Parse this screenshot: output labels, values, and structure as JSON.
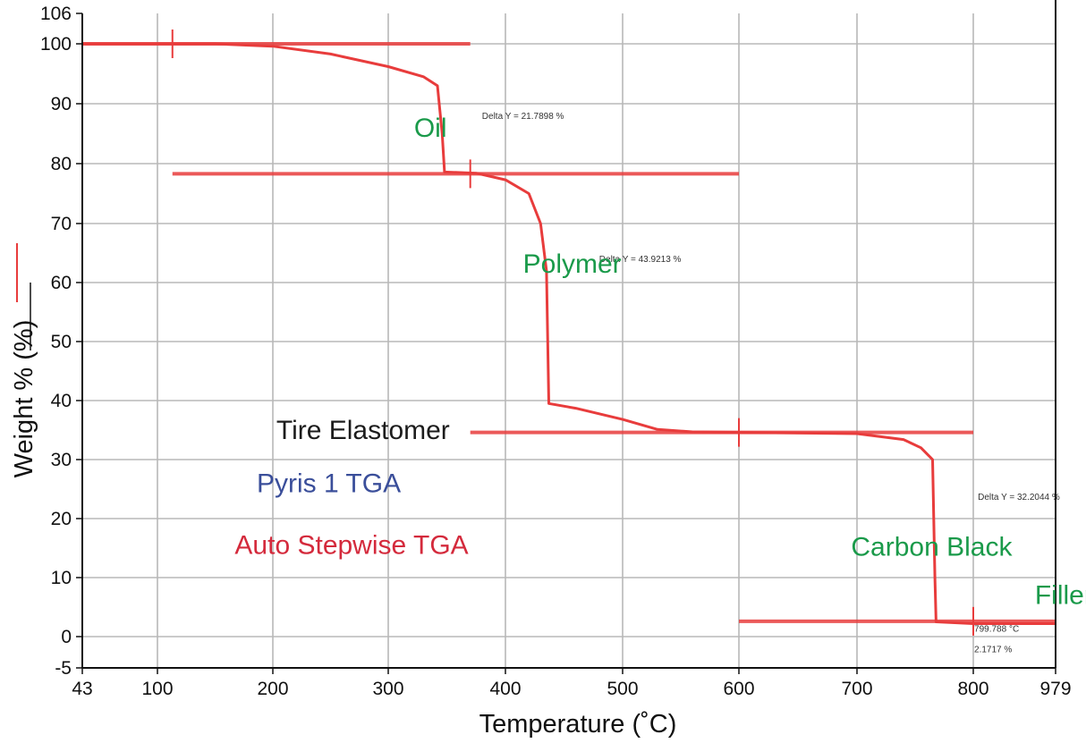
{
  "colors": {
    "curve": "#e83c3c",
    "grid": "#b8b8b8",
    "axis": "#111111",
    "region_label": "#1a9a4a",
    "title_black": "#1c1c1c",
    "title_blue": "#3a4e9a",
    "title_red": "#d42a3c"
  },
  "chart_data": {
    "type": "line",
    "xlabel": "Temperature (˚C)",
    "ylabel": "Weight % (%)",
    "xlim": [
      43,
      979
    ],
    "ylim": [
      -5,
      106
    ],
    "xticks": [
      "43",
      "100",
      "200",
      "300",
      "400",
      "500",
      "600",
      "700",
      "800",
      "979"
    ],
    "yticks": [
      "106",
      "100",
      "90",
      "80",
      "70",
      "60",
      "50",
      "40",
      "30",
      "20",
      "10",
      "0",
      "-5"
    ],
    "grid": true,
    "series": [
      {
        "points": [
          [
            43,
            100
          ],
          [
            150,
            100
          ],
          [
            200,
            99.6
          ],
          [
            250,
            98.3
          ],
          [
            300,
            96.2
          ],
          [
            330,
            94.5
          ],
          [
            342,
            93
          ],
          [
            346,
            85
          ],
          [
            348,
            78.6
          ],
          [
            375,
            78.4
          ],
          [
            400,
            77.3
          ],
          [
            420,
            75
          ],
          [
            430,
            70
          ],
          [
            435,
            62
          ],
          [
            437,
            39.5
          ],
          [
            460,
            38.7
          ],
          [
            500,
            36.8
          ],
          [
            530,
            35.1
          ],
          [
            560,
            34.7
          ],
          [
            700,
            34.4
          ],
          [
            740,
            33.4
          ],
          [
            755,
            32
          ],
          [
            765,
            30
          ],
          [
            766,
            20
          ],
          [
            767,
            10
          ],
          [
            768,
            2.5
          ],
          [
            800,
            2.2
          ],
          [
            979,
            2.2
          ]
        ]
      }
    ],
    "reference_lines": [
      {
        "y": 100,
        "x": [
          43,
          370
        ]
      },
      {
        "y": 78.3,
        "x": [
          113,
          600
        ]
      },
      {
        "y": 34.6,
        "x": [
          370,
          800
        ]
      },
      {
        "y": 2.6,
        "x": [
          600,
          979
        ]
      }
    ],
    "step_markers": [
      {
        "x": 113,
        "y": 100
      },
      {
        "x": 370,
        "y": 78.3
      },
      {
        "x": 600,
        "y": 34.6
      },
      {
        "x": 800,
        "y": 2.6
      }
    ],
    "annotations": [
      {
        "text": "Delta Y = 21.7898 %",
        "x": 380,
        "y": 87.5
      },
      {
        "text": "Delta Y = 43.9213 %",
        "x": 480,
        "y": 63.5
      },
      {
        "text": "Delta Y = 32.2044 %",
        "x": 810,
        "y": 23.2
      },
      {
        "text": "799.788 °C",
        "x": 802,
        "y": 0.8
      },
      {
        "text": "2.1717 %",
        "x": 802,
        "y": -2.5
      }
    ],
    "region_labels": [
      {
        "text": "Oil",
        "x": 322,
        "y": 84.5
      },
      {
        "text": "Polymer",
        "x": 415,
        "y": 61.7
      },
      {
        "text": "Carbon Black",
        "x": 695,
        "y": 13.7
      },
      {
        "text": "Filler",
        "x": 934,
        "y": 5.5
      }
    ],
    "info_labels": [
      {
        "text": "Tire Elastomer",
        "color_key": "title_black",
        "x": 203,
        "y": 33.5
      },
      {
        "text": "Pyris 1 TGA",
        "color_key": "title_blue",
        "x": 186,
        "y": 24.5
      },
      {
        "text": "Auto Stepwise TGA",
        "color_key": "title_red",
        "x": 167,
        "y": 14
      }
    ],
    "legend": {
      "position": "left",
      "color": "#e83c3c"
    }
  }
}
